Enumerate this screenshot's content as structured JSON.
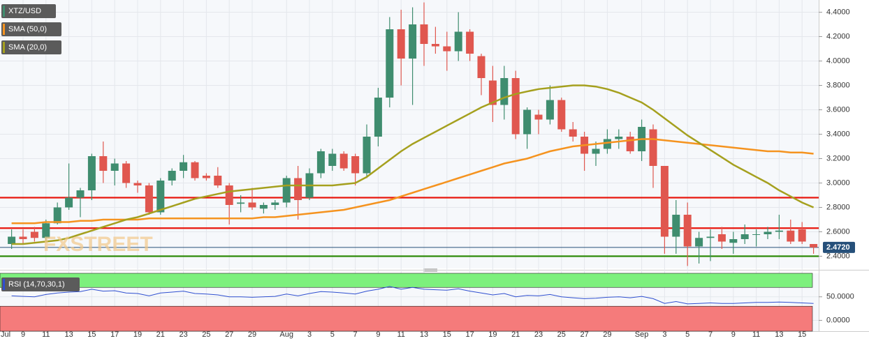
{
  "chart_data": [
    {
      "type": "candlestick",
      "symbol": "XTZ/USD",
      "watermark": "FXSTREET",
      "first_month_label": "Jul",
      "categories": [
        null,
        "9",
        null,
        "11",
        null,
        "13",
        null,
        "15",
        null,
        "17",
        null,
        "19",
        null,
        "21",
        null,
        "23",
        null,
        "25",
        null,
        "27",
        null,
        "29",
        null,
        null,
        "Aug",
        null,
        "3",
        null,
        "5",
        null,
        "7",
        null,
        "9",
        null,
        "11",
        null,
        "13",
        null,
        "15",
        null,
        "17",
        null,
        "19",
        null,
        "21",
        null,
        "23",
        null,
        "25",
        null,
        "27",
        null,
        "29",
        null,
        null,
        "Sep",
        null,
        "3",
        null,
        "5",
        null,
        "7",
        null,
        "9",
        null,
        "11",
        null,
        "13",
        null,
        "15",
        null
      ],
      "open": [
        2.5,
        2.56,
        2.6,
        2.55,
        2.67,
        2.8,
        2.88,
        2.94,
        3.22,
        3.1,
        3.16,
        3.0,
        2.98,
        2.76,
        3.02,
        3.1,
        3.17,
        3.06,
        3.06,
        2.98,
        2.83,
        2.84,
        2.79,
        2.82,
        2.84,
        3.04,
        2.88,
        3.08,
        3.14,
        3.24,
        3.22,
        3.08,
        3.38,
        3.7,
        4.26,
        4.02,
        4.3,
        4.14,
        4.12,
        4.08,
        4.24,
        4.04,
        3.84,
        3.64,
        3.86,
        3.4,
        3.56,
        3.52,
        3.68,
        3.44,
        3.38,
        3.24,
        3.28,
        3.36,
        3.38,
        3.26,
        3.44,
        3.14,
        2.56,
        2.74,
        2.48,
        2.55,
        2.58,
        2.51,
        2.54,
        2.58,
        2.58,
        2.6,
        2.61,
        2.62,
        2.5
      ],
      "high": [
        2.62,
        2.62,
        2.64,
        2.7,
        2.84,
        3.16,
        2.96,
        3.24,
        3.34,
        3.2,
        3.18,
        3.02,
        3.0,
        3.04,
        3.12,
        3.23,
        3.18,
        3.08,
        3.13,
        3.0,
        2.9,
        2.96,
        2.84,
        2.86,
        3.06,
        3.14,
        3.12,
        3.28,
        3.28,
        3.26,
        3.24,
        3.48,
        3.78,
        4.36,
        4.42,
        4.44,
        4.48,
        4.28,
        4.24,
        4.4,
        4.26,
        4.06,
        3.96,
        3.96,
        3.92,
        3.62,
        3.6,
        3.8,
        3.7,
        3.5,
        3.42,
        3.34,
        3.44,
        3.44,
        3.42,
        3.52,
        3.48,
        3.14,
        2.86,
        2.84,
        2.6,
        2.62,
        2.64,
        2.6,
        2.66,
        2.62,
        2.64,
        2.74,
        2.7,
        2.68,
        2.5
      ],
      "low": [
        2.46,
        2.5,
        2.52,
        2.52,
        2.66,
        2.78,
        2.72,
        2.86,
        3.0,
        2.98,
        2.96,
        2.92,
        2.74,
        2.74,
        2.98,
        3.04,
        3.02,
        3.02,
        2.96,
        2.66,
        2.76,
        2.78,
        2.75,
        2.78,
        2.8,
        2.7,
        2.86,
        3.04,
        3.1,
        3.1,
        2.98,
        3.04,
        3.3,
        3.62,
        3.8,
        3.64,
        3.96,
        4.06,
        3.92,
        4.0,
        4.0,
        3.72,
        3.5,
        3.52,
        3.36,
        3.28,
        3.4,
        3.48,
        3.42,
        3.34,
        3.1,
        3.14,
        3.24,
        3.28,
        3.24,
        3.18,
        2.96,
        2.42,
        2.42,
        2.32,
        2.34,
        2.36,
        2.46,
        2.42,
        2.5,
        2.48,
        2.54,
        2.54,
        2.5,
        2.5,
        2.42
      ],
      "close": [
        2.56,
        2.54,
        2.55,
        2.67,
        2.8,
        2.88,
        2.94,
        3.22,
        3.1,
        3.16,
        3.0,
        2.98,
        2.76,
        3.02,
        3.1,
        3.17,
        3.04,
        3.04,
        2.98,
        2.82,
        2.84,
        2.8,
        2.82,
        2.84,
        3.04,
        2.86,
        3.08,
        3.26,
        3.24,
        3.12,
        3.08,
        3.38,
        3.7,
        4.26,
        4.02,
        4.3,
        4.14,
        4.12,
        4.08,
        4.24,
        4.06,
        3.86,
        3.64,
        3.86,
        3.4,
        3.6,
        3.52,
        3.68,
        3.44,
        3.38,
        3.24,
        3.28,
        3.36,
        3.38,
        3.26,
        3.46,
        3.14,
        2.56,
        2.74,
        2.48,
        2.55,
        2.56,
        2.52,
        2.54,
        2.58,
        2.58,
        2.6,
        2.61,
        2.52,
        2.52,
        2.472
      ],
      "up_color": "#3f8d6f",
      "down_color": "#e0574f",
      "series": [
        {
          "name": "SMA (50,0)",
          "color": "#f5931f",
          "values": [
            2.67,
            2.67,
            2.67,
            2.68,
            2.68,
            2.68,
            2.69,
            2.69,
            2.7,
            2.7,
            2.7,
            2.7,
            2.71,
            2.71,
            2.71,
            2.71,
            2.71,
            2.71,
            2.71,
            2.71,
            2.71,
            2.71,
            2.72,
            2.72,
            2.73,
            2.74,
            2.75,
            2.76,
            2.77,
            2.78,
            2.8,
            2.82,
            2.84,
            2.86,
            2.89,
            2.92,
            2.95,
            2.98,
            3.01,
            3.04,
            3.07,
            3.1,
            3.13,
            3.16,
            3.18,
            3.2,
            3.23,
            3.26,
            3.28,
            3.3,
            3.31,
            3.32,
            3.33,
            3.34,
            3.35,
            3.36,
            3.36,
            3.35,
            3.34,
            3.33,
            3.32,
            3.31,
            3.3,
            3.29,
            3.28,
            3.27,
            3.26,
            3.26,
            3.25,
            3.25,
            3.24
          ]
        },
        {
          "name": "SMA (20,0)",
          "color": "#a5a01e",
          "values": [
            2.5,
            2.5,
            2.51,
            2.52,
            2.53,
            2.55,
            2.58,
            2.61,
            2.64,
            2.67,
            2.7,
            2.72,
            2.75,
            2.78,
            2.81,
            2.84,
            2.87,
            2.89,
            2.91,
            2.93,
            2.94,
            2.95,
            2.96,
            2.97,
            2.98,
            2.98,
            2.98,
            2.98,
            2.98,
            2.99,
            3.0,
            3.05,
            3.12,
            3.19,
            3.26,
            3.32,
            3.37,
            3.42,
            3.47,
            3.52,
            3.57,
            3.62,
            3.66,
            3.7,
            3.73,
            3.75,
            3.77,
            3.78,
            3.79,
            3.8,
            3.8,
            3.79,
            3.77,
            3.74,
            3.7,
            3.66,
            3.6,
            3.53,
            3.46,
            3.39,
            3.33,
            3.27,
            3.21,
            3.15,
            3.1,
            3.05,
            3.0,
            2.94,
            2.89,
            2.84,
            2.8
          ]
        }
      ],
      "levels": [
        {
          "value": 2.88,
          "color": "#e8160c"
        },
        {
          "value": 2.63,
          "color": "#e8160c"
        },
        {
          "value": 2.4,
          "color": "#2e8b0a"
        }
      ],
      "price_line": {
        "value": 2.472,
        "label": "2.4720",
        "color": "#26507a"
      },
      "ylim": [
        2.3,
        4.5
      ],
      "yticks": [
        {
          "value": 2.4,
          "label": "2.4000"
        },
        {
          "value": 2.6,
          "label": "2.6000"
        },
        {
          "value": 2.8,
          "label": "2.8000"
        },
        {
          "value": 3.0,
          "label": "3.0000"
        },
        {
          "value": 3.2,
          "label": "3.2000"
        },
        {
          "value": 3.4,
          "label": "3.4000"
        },
        {
          "value": 3.6,
          "label": "3.6000"
        },
        {
          "value": 3.8,
          "label": "3.8000"
        },
        {
          "value": 4.0,
          "label": "4.0000"
        },
        {
          "value": 4.2,
          "label": "4.2000"
        },
        {
          "value": 4.4,
          "label": "4.4000"
        }
      ],
      "grid": true
    },
    {
      "type": "line",
      "title": "RSI (14,70,30,1)",
      "color": "#2f4fd0",
      "values": [
        52,
        51,
        50,
        55,
        58,
        60,
        61,
        66,
        62,
        63,
        58,
        57,
        52,
        58,
        60,
        62,
        57,
        56,
        54,
        50,
        50,
        49,
        50,
        51,
        56,
        52,
        57,
        61,
        60,
        58,
        56,
        62,
        66,
        72,
        66,
        70,
        66,
        65,
        64,
        67,
        62,
        58,
        54,
        57,
        50,
        53,
        52,
        55,
        50,
        48,
        46,
        47,
        49,
        50,
        48,
        51,
        46,
        36,
        40,
        35,
        36,
        37,
        36,
        36,
        37,
        38,
        38,
        39,
        38,
        37,
        36
      ],
      "zones": [
        {
          "from": 70,
          "to": 100,
          "color": "#7df07d"
        },
        {
          "from": -23,
          "to": 30,
          "color": "#f57b7b"
        }
      ],
      "ylim": [
        -23,
        100
      ],
      "yticks": [
        {
          "value": 0,
          "label": "0.0000"
        },
        {
          "value": 50,
          "label": "50.0000"
        }
      ],
      "grid": true
    }
  ]
}
